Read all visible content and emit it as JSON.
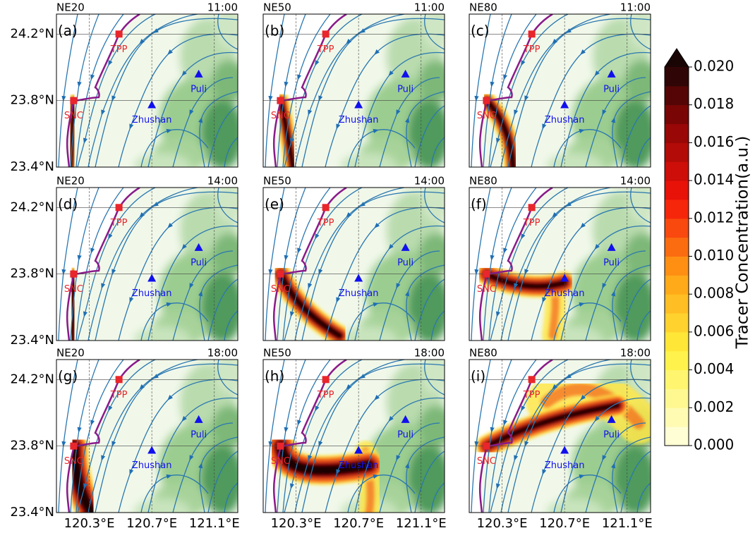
{
  "panels": [
    {
      "label": "(a)",
      "case": "NE20",
      "time": "11:00"
    },
    {
      "label": "(b)",
      "case": "NE50",
      "time": "11:00"
    },
    {
      "label": "(c)",
      "case": "NE80",
      "time": "11:00"
    },
    {
      "label": "(d)",
      "case": "NE20",
      "time": "14:00"
    },
    {
      "label": "(e)",
      "case": "NE50",
      "time": "14:00"
    },
    {
      "label": "(f)",
      "case": "NE80",
      "time": "14:00"
    },
    {
      "label": "(g)",
      "case": "NE20",
      "time": "18:00"
    },
    {
      "label": "(h)",
      "case": "NE50",
      "time": "18:00"
    },
    {
      "label": "(i)",
      "case": "NE80",
      "time": "18:00"
    }
  ],
  "xlim": [
    120.09,
    121.25
  ],
  "ylim": [
    23.4,
    24.32
  ],
  "xticks": [
    {
      "value": 120.3,
      "label": "120.3°E"
    },
    {
      "value": 120.7,
      "label": "120.7°E"
    },
    {
      "value": 121.1,
      "label": "121.1°E"
    }
  ],
  "yticks": [
    {
      "value": 24.2,
      "label": "24.2°N"
    },
    {
      "value": 23.8,
      "label": "23.8°N"
    },
    {
      "value": 23.4,
      "label": "23.4°N"
    }
  ],
  "places": [
    {
      "name": "TPP",
      "lon": 120.49,
      "lat": 24.2,
      "color": "#e8262c",
      "shape": "square"
    },
    {
      "name": "SNC",
      "lon": 120.2,
      "lat": 23.8,
      "color": "#e8262c",
      "shape": "square"
    },
    {
      "name": "Puli",
      "lon": 121.0,
      "lat": 23.96,
      "color": "#1010ee",
      "shape": "triangle"
    },
    {
      "name": "Zhushan",
      "lon": 120.7,
      "lat": 23.775,
      "color": "#1010ee",
      "shape": "triangle"
    }
  ],
  "colorbar": {
    "label": "Tracer Concentration(a.u.)",
    "lim": [
      0,
      0.02
    ],
    "ticks": [
      {
        "value": 0,
        "label": "0.000"
      },
      {
        "value": 0.002,
        "label": "0.002"
      },
      {
        "value": 0.004,
        "label": "0.004"
      },
      {
        "value": 0.006,
        "label": "0.006"
      },
      {
        "value": 0.008,
        "label": "0.008"
      },
      {
        "value": 0.01,
        "label": "0.010"
      },
      {
        "value": 0.012,
        "label": "0.012"
      },
      {
        "value": 0.014,
        "label": "0.014"
      },
      {
        "value": 0.016,
        "label": "0.016"
      },
      {
        "value": 0.018,
        "label": "0.018"
      },
      {
        "value": 0.02,
        "label": "0.020"
      }
    ]
  }
}
